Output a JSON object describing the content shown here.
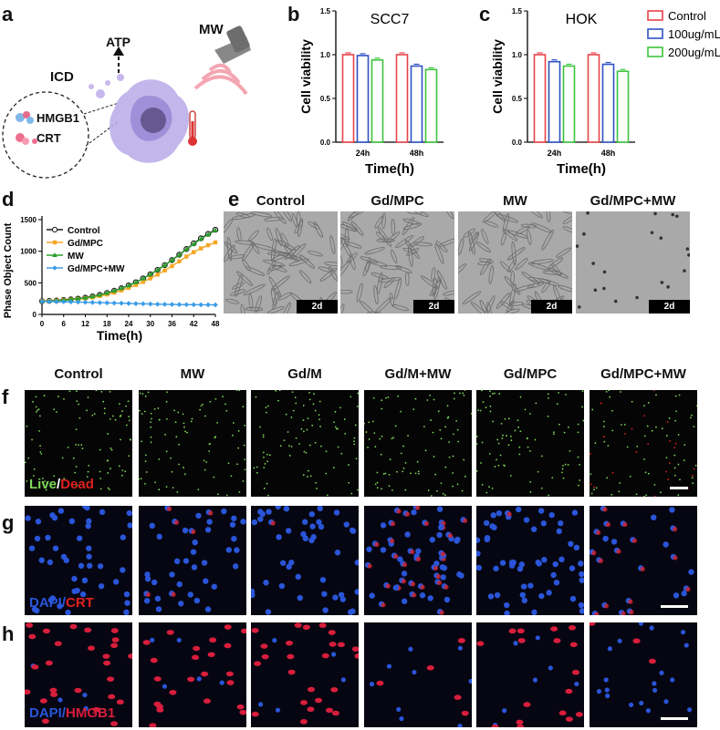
{
  "panels": {
    "a": {
      "letter": "a",
      "labels": {
        "atp": "ATP",
        "mw": "MW",
        "icd": "ICD",
        "hmgb1": "HMGB1",
        "crt": "CRT"
      }
    },
    "b": {
      "letter": "b"
    },
    "c": {
      "letter": "c"
    },
    "d": {
      "letter": "d"
    },
    "e": {
      "letter": "e",
      "columns": [
        "Control",
        "Gd/MPC",
        "MW",
        "Gd/MPC+MW"
      ],
      "scale_tag": "2d"
    },
    "f": {
      "letter": "f",
      "stain_live": "Live",
      "stain_sep": "/",
      "stain_dead": "Dead"
    },
    "g": {
      "letter": "g",
      "stain_a": "DAPI",
      "stain_sep": "/",
      "stain_b": "CRT"
    },
    "h": {
      "letter": "h",
      "stain_a": "DAPI",
      "stain_sep": "/",
      "stain_b": "HMGB1"
    }
  },
  "fgh_columns": [
    "Control",
    "MW",
    "Gd/M",
    "Gd/M+MW",
    "Gd/MPC",
    "Gd/MPC+MW"
  ],
  "colors": {
    "control": "#e8434a",
    "c100": "#2f52c4",
    "c200": "#3cc43c",
    "d_control": "#1a1a1a",
    "d_gdmpc": "#f5a623",
    "d_mw": "#2ca02c",
    "d_gdmpcmw": "#3a9ce8",
    "live": "#7ed957",
    "dead": "#e02020",
    "dapi": "#2a55d8",
    "crt": "#e02020",
    "hmgb1": "#d81e3c"
  },
  "chart_data": [
    {
      "type": "bar",
      "title": "SCC7",
      "xlabel": "Time(h)",
      "ylabel": "Cell viability",
      "categories": [
        "24h",
        "48h"
      ],
      "ylim": [
        0,
        1.5
      ],
      "yticks": [
        "0.0",
        "0.5",
        "1.0",
        "1.5"
      ],
      "series": [
        {
          "name": "Control",
          "values": [
            1.0,
            1.0
          ]
        },
        {
          "name": "100ug/mL",
          "values": [
            0.99,
            0.87
          ]
        },
        {
          "name": "200ug/mL",
          "values": [
            0.94,
            0.83
          ]
        }
      ]
    },
    {
      "type": "bar",
      "title": "HOK",
      "xlabel": "Time(h)",
      "ylabel": "Cell viability",
      "categories": [
        "24h",
        "48h"
      ],
      "ylim": [
        0,
        1.5
      ],
      "yticks": [
        "0.0",
        "0.5",
        "1.0",
        "1.5"
      ],
      "series": [
        {
          "name": "Control",
          "values": [
            1.0,
            1.0
          ]
        },
        {
          "name": "100ug/mL",
          "values": [
            0.92,
            0.89
          ]
        },
        {
          "name": "200ug/mL",
          "values": [
            0.87,
            0.81
          ]
        }
      ],
      "legend": "top-right"
    },
    {
      "type": "line",
      "xlabel": "Time(h)",
      "ylabel": "Phase Object Count",
      "x": [
        0,
        2,
        4,
        6,
        8,
        10,
        12,
        14,
        16,
        18,
        20,
        22,
        24,
        26,
        28,
        30,
        32,
        34,
        36,
        38,
        40,
        42,
        44,
        46,
        48
      ],
      "xticks": [
        "0",
        "6",
        "12",
        "18",
        "24",
        "30",
        "36",
        "42",
        "48"
      ],
      "ylim": [
        0,
        1500
      ],
      "yticks": [
        "0",
        "500",
        "1000",
        "1500"
      ],
      "legend": "top-left",
      "series": [
        {
          "name": "Control",
          "values": [
            210,
            215,
            220,
            228,
            238,
            250,
            265,
            285,
            310,
            340,
            375,
            415,
            460,
            510,
            570,
            635,
            705,
            780,
            860,
            945,
            1035,
            1125,
            1205,
            1275,
            1340
          ]
        },
        {
          "name": "Gd/MPC",
          "values": [
            210,
            213,
            218,
            225,
            233,
            243,
            255,
            270,
            290,
            315,
            345,
            380,
            420,
            465,
            515,
            570,
            630,
            695,
            765,
            840,
            915,
            985,
            1045,
            1095,
            1140
          ]
        },
        {
          "name": "MW",
          "values": [
            210,
            214,
            219,
            227,
            237,
            249,
            263,
            283,
            308,
            337,
            372,
            412,
            457,
            507,
            567,
            632,
            702,
            777,
            857,
            942,
            1030,
            1115,
            1195,
            1265,
            1330
          ]
        },
        {
          "name": "Gd/MPC+MW",
          "values": [
            205,
            204,
            202,
            200,
            198,
            195,
            192,
            189,
            186,
            183,
            180,
            177,
            174,
            171,
            168,
            165,
            162,
            160,
            158,
            156,
            155,
            154,
            153,
            152,
            151
          ]
        }
      ]
    }
  ]
}
